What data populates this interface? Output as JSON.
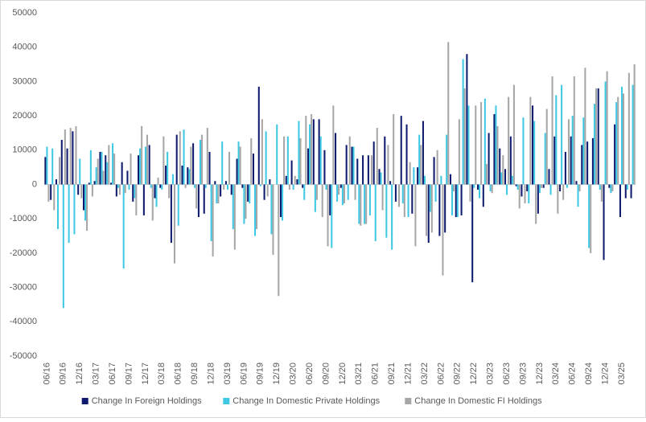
{
  "chart_data": {
    "type": "bar",
    "categories": [
      "06/16",
      null,
      null,
      "09/16",
      null,
      null,
      "12/16",
      null,
      null,
      "03/17",
      null,
      null,
      "06/17",
      null,
      null,
      "09/17",
      null,
      null,
      "12/17",
      null,
      null,
      "03/18",
      null,
      null,
      "06/18",
      null,
      null,
      "09/18",
      null,
      null,
      "12/18",
      null,
      null,
      "03/19",
      null,
      null,
      "06/19",
      null,
      null,
      "09/19",
      null,
      null,
      "12/19",
      null,
      null,
      "03/20",
      null,
      null,
      "06/20",
      null,
      null,
      "09/20",
      null,
      null,
      "12/20",
      null,
      null,
      "03/21",
      null,
      null,
      "06/21",
      null,
      null,
      "09/21",
      null,
      null,
      "12/21",
      null,
      null,
      "03/22",
      null,
      null,
      "06/22",
      null,
      null,
      "09/22",
      null,
      null,
      "12/22",
      null,
      null,
      "03/23",
      null,
      null,
      "06/23",
      null,
      null,
      "09/23",
      null,
      null,
      "12/23",
      null,
      null,
      "03/24",
      null,
      null,
      "06/24",
      null,
      null,
      "09/24",
      null,
      null,
      "12/24",
      null,
      null,
      "03/25",
      null,
      null
    ],
    "series": [
      {
        "name": "Change In Foreign Holdings",
        "color": "#0d1a6e",
        "values": [
          8000,
          -4500,
          1500,
          13000,
          10500,
          15500,
          -3000,
          -7500,
          500,
          1000,
          9500,
          8500,
          500,
          -3500,
          6500,
          4000,
          -5000,
          8500,
          -9000,
          11500,
          -4000,
          -1000,
          5500,
          -17000,
          14500,
          5500,
          5000,
          12000,
          -9500,
          -8500,
          9500,
          1000,
          -3500,
          1000,
          -3000,
          7500,
          -1000,
          -5000,
          9000,
          28500,
          -4500,
          1500,
          0,
          -9500,
          2500,
          7000,
          1500,
          -1000,
          10500,
          19000,
          19000,
          10000,
          -9000,
          15000,
          -1000,
          11500,
          11000,
          7500,
          8500,
          8500,
          12500,
          4500,
          14000,
          1000,
          -5000,
          20000,
          17500,
          -8500,
          5000,
          18500,
          -17000,
          8000,
          -15000,
          -14000,
          3000,
          -9500,
          -9000,
          38000,
          -28500,
          -1500,
          -6500,
          15000,
          20500,
          10500,
          4500,
          14000,
          -500,
          -3500,
          -2000,
          23000,
          -8500,
          -1000,
          4500,
          14000,
          -2000,
          9500,
          14000,
          1000,
          11500,
          12500,
          13500,
          28000,
          -22000,
          -1000,
          17500,
          -9500,
          -4000,
          -4000
        ]
      },
      {
        "name": "Change In Domestic Private Holdings",
        "color": "#3ec8e4",
        "values": [
          11000,
          10500,
          -13000,
          -36000,
          -17000,
          -14500,
          7500,
          -10500,
          10000,
          5000,
          9500,
          6500,
          12000,
          -1000,
          -24500,
          -1500,
          -4000,
          10500,
          11000,
          -1000,
          -6500,
          -1500,
          9500,
          3000,
          -12000,
          16000,
          4500,
          -1000,
          13000,
          -1000,
          -16500,
          -5500,
          12500,
          -1500,
          -13000,
          12500,
          -11500,
          -5500,
          -15000,
          -500,
          15500,
          -14500,
          17500,
          -10500,
          14000,
          -1500,
          18500,
          -4500,
          17500,
          -8000,
          14000,
          -1500,
          -18500,
          -5000,
          -6000,
          -4500,
          11000,
          -11500,
          -11500,
          -9000,
          -16500,
          3500,
          -15500,
          -19000,
          0,
          -5500,
          -9500,
          5000,
          14500,
          2500,
          -8000,
          -5000,
          2500,
          14500,
          -9000,
          -9500,
          36500,
          23000,
          -1000,
          -4000,
          25000,
          -2000,
          23000,
          3500,
          -3000,
          2500,
          -1500,
          19500,
          -5500,
          18500,
          -2500,
          15000,
          -3000,
          26000,
          29000,
          -1000,
          20000,
          -6500,
          19500,
          -18500,
          23500,
          -1500,
          30000,
          -2500,
          24000,
          28500,
          -1500,
          29000
        ]
      },
      {
        "name": "Change In Domestic FI Holdings",
        "color": "#a6a6a6",
        "values": [
          -5000,
          -7500,
          8000,
          16000,
          16500,
          17000,
          -4000,
          -13500,
          -3500,
          7500,
          4000,
          11500,
          9000,
          -3000,
          -2500,
          9000,
          -9000,
          17000,
          14500,
          -10500,
          2000,
          14000,
          -4000,
          -23000,
          15500,
          -1000,
          11000,
          -7000,
          14500,
          16500,
          -21000,
          -5500,
          -1500,
          9500,
          -19000,
          11000,
          -10000,
          13500,
          -13000,
          19000,
          -3500,
          -20500,
          -32500,
          14000,
          -1500,
          2500,
          13500,
          20000,
          20500,
          -4500,
          -9500,
          -18000,
          23000,
          -3000,
          -5500,
          14000,
          -4500,
          -12000,
          -11500,
          8500,
          16500,
          -7500,
          11500,
          20500,
          -6500,
          -9500,
          6500,
          -18000,
          11500,
          -15000,
          -14000,
          10000,
          -26500,
          41500,
          -2000,
          19000,
          28000,
          -5000,
          23000,
          24000,
          6000,
          -2500,
          17000,
          8500,
          25500,
          29000,
          -7000,
          -5500,
          25500,
          -11500,
          -1000,
          22000,
          31500,
          -8500,
          -4500,
          19000,
          31500,
          -2000,
          34000,
          -20000,
          28000,
          -5000,
          33000,
          -2000,
          25500,
          26500,
          32500,
          35000
        ]
      }
    ],
    "ylim": [
      -50000,
      50000
    ],
    "yticks": [
      -50000,
      -40000,
      -30000,
      -20000,
      -10000,
      0,
      10000,
      20000,
      30000,
      40000,
      50000
    ],
    "grid": false,
    "legend": "bottom"
  }
}
